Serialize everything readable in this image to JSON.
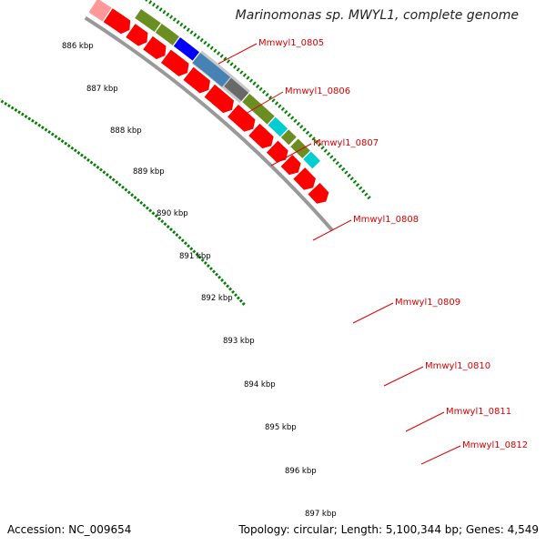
{
  "title": "Marinomonas sp. MWYL1, complete genome",
  "footer": {
    "accession": "Accession: NC_009654",
    "stats": "Topology: circular; Length: 5,100,344 bp; Genes: 4,549"
  },
  "ruler": [
    "886 kbp",
    "887 kbp",
    "888 kbp",
    "889 kbp",
    "890 kbp",
    "891 kbp",
    "892 kbp",
    "893 kbp",
    "894 kbp",
    "895 kbp",
    "896 kbp",
    "897 kbp"
  ],
  "genes": [
    "Mmwyl1_0805",
    "Mmwyl1_0806",
    "Mmwyl1_0807",
    "Mmwyl1_0808",
    "Mmwyl1_0809",
    "Mmwyl1_0810",
    "Mmwyl1_0811",
    "Mmwyl1_0812"
  ],
  "colors": {
    "cds": "#ff0000",
    "olive": "#6b8e23",
    "blue": "#0000ff",
    "steelblue": "#4682b4",
    "lightgray": "#c8c8c8",
    "darkgray": "#696969",
    "cyan": "#00ced1",
    "backbone": "#999999",
    "ruler": "#008000",
    "label": "#dd0000"
  }
}
